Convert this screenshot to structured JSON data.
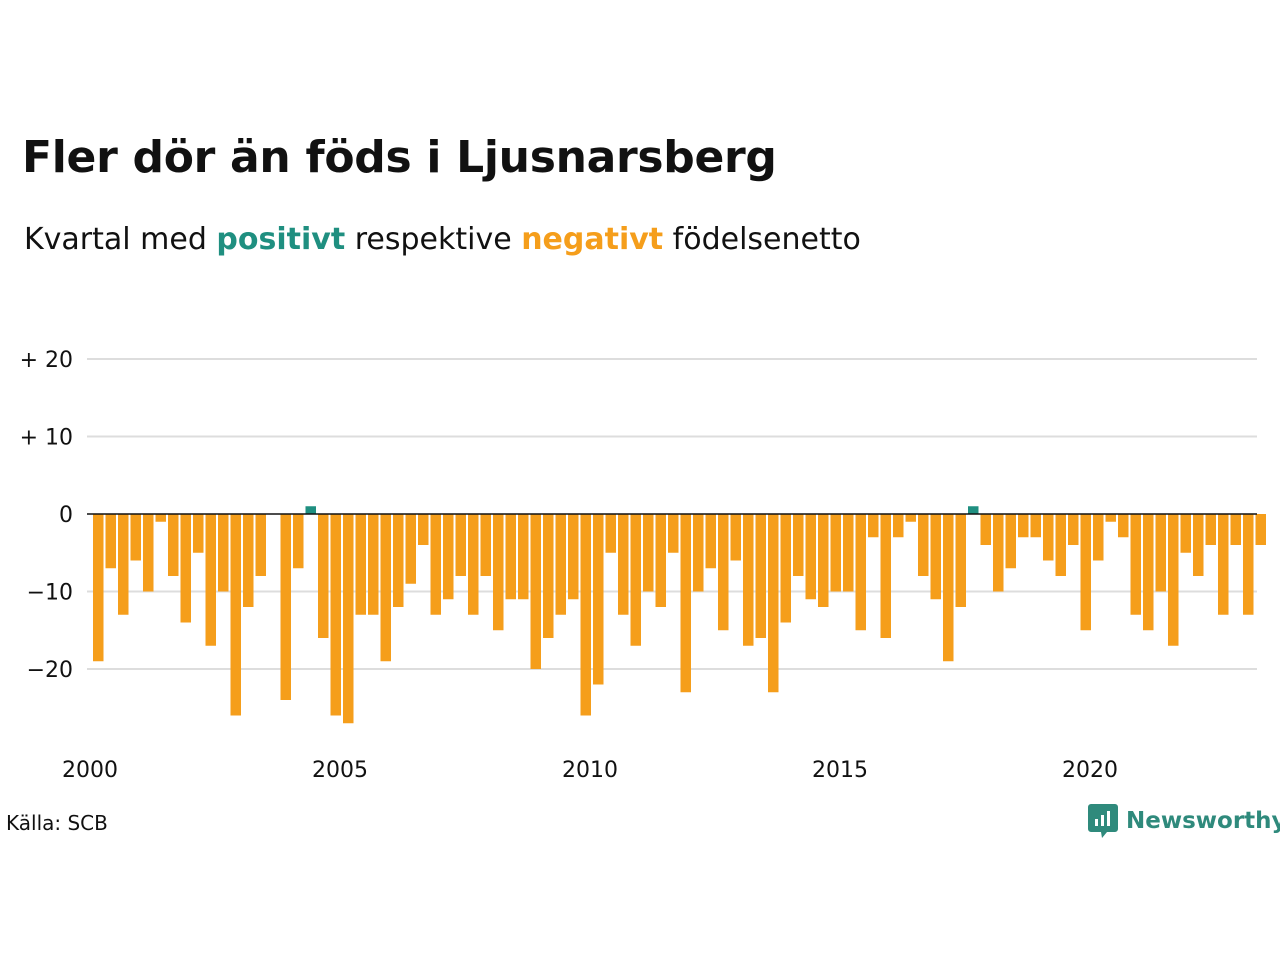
{
  "title": "Fler dör än föds i Ljusnarsberg",
  "subtitle": {
    "prefix": "Kvartal med ",
    "positive_word": "positivt",
    "middle": " respektive ",
    "negative_word": "negativt",
    "suffix": " födelsenetto"
  },
  "source": "Källa: SCB",
  "brand": {
    "name": "Newsworthy",
    "icon": "newsworthy-logo-icon"
  },
  "colors": {
    "positive": "#1f8f80",
    "negative": "#f59e1b",
    "grid": "#dddddd",
    "zero": "#111111",
    "brand": "#2f8a7c"
  },
  "chart_data": {
    "type": "bar",
    "x_label_ticks": [
      "2000",
      "2005",
      "2010",
      "2015",
      "2020"
    ],
    "y_tick_labels": [
      "+ 20",
      "+ 10",
      "0",
      "−10",
      "−20"
    ],
    "y_tick_values": [
      20,
      10,
      0,
      -10,
      -20
    ],
    "ylim": [
      -28,
      22
    ],
    "grid": true,
    "start": "2000 Q1",
    "frequency": "quarter",
    "values": [
      -19,
      -7,
      -13,
      -6,
      -10,
      -1,
      -8,
      -14,
      -5,
      -17,
      -10,
      -26,
      -12,
      -8,
      0,
      -24,
      -7,
      1,
      -16,
      -26,
      -27,
      -13,
      -13,
      -19,
      -12,
      -9,
      -4,
      -13,
      -11,
      -8,
      -13,
      -8,
      -15,
      -11,
      -11,
      -20,
      -16,
      -13,
      -11,
      -26,
      -22,
      -5,
      -13,
      -17,
      -10,
      -12,
      -5,
      -23,
      -10,
      -7,
      -15,
      -6,
      -17,
      -16,
      -23,
      -14,
      -8,
      -11,
      -12,
      -10,
      -10,
      -15,
      -3,
      -16,
      -3,
      -1,
      -8,
      -11,
      -19,
      -12,
      1,
      -4,
      -10,
      -7,
      -3,
      -3,
      -6,
      -8,
      -4,
      -15,
      -6,
      -1,
      -3,
      -13,
      -15,
      -10,
      -17,
      -5,
      -8,
      -4,
      -13,
      -4,
      -13,
      -4
    ]
  }
}
